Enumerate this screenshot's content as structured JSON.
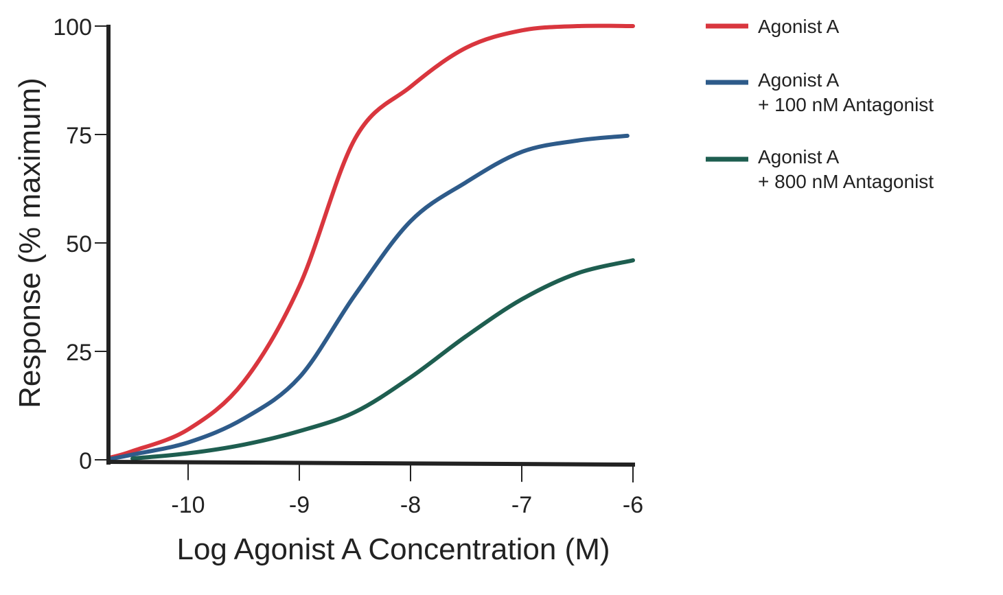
{
  "chart_data": {
    "type": "line",
    "title": "",
    "xlabel": "Log Agonist A Concentration (M)",
    "ylabel": "Response (% maximum)",
    "xlim": [
      -10.72,
      -6
    ],
    "ylim": [
      0,
      100
    ],
    "x_ticks": [
      -10,
      -9,
      -8,
      -7,
      -6
    ],
    "y_ticks": [
      0,
      25,
      50,
      75,
      100
    ],
    "grid": false,
    "legend_position": "right",
    "series": [
      {
        "name": "Agonist A",
        "color": "#d9363e",
        "x": [
          -10.7,
          -10.5,
          -10,
          -9.5,
          -9,
          -8.5,
          -8,
          -7.5,
          -7,
          -6.5,
          -6
        ],
        "values": [
          0.5,
          2,
          7,
          18,
          40,
          74,
          86,
          95,
          99,
          100,
          100
        ]
      },
      {
        "name": "Agonist A\n+ 100 nM Antagonist",
        "name_lines": [
          "Agonist A",
          "+ 100 nM Antagonist"
        ],
        "color": "#2e5b8a",
        "x": [
          -10.7,
          -10.5,
          -10,
          -9.5,
          -9,
          -8.5,
          -8,
          -7.5,
          -7,
          -6.5,
          -6.05
        ],
        "values": [
          0.2,
          1.2,
          4,
          9.5,
          19,
          38,
          55,
          64,
          71,
          73.6,
          74.7
        ]
      },
      {
        "name": "Agonist A\n+ 800 nM Antagonist",
        "name_lines": [
          "Agonist A",
          "+ 800 nM Antagonist"
        ],
        "color": "#1e5e50",
        "x": [
          -10.5,
          -10,
          -9.5,
          -9,
          -8.5,
          -8,
          -7.5,
          -7,
          -6.5,
          -6
        ],
        "values": [
          0.3,
          1.5,
          3.5,
          6.6,
          11,
          19,
          28.5,
          37,
          43,
          46
        ]
      }
    ]
  }
}
